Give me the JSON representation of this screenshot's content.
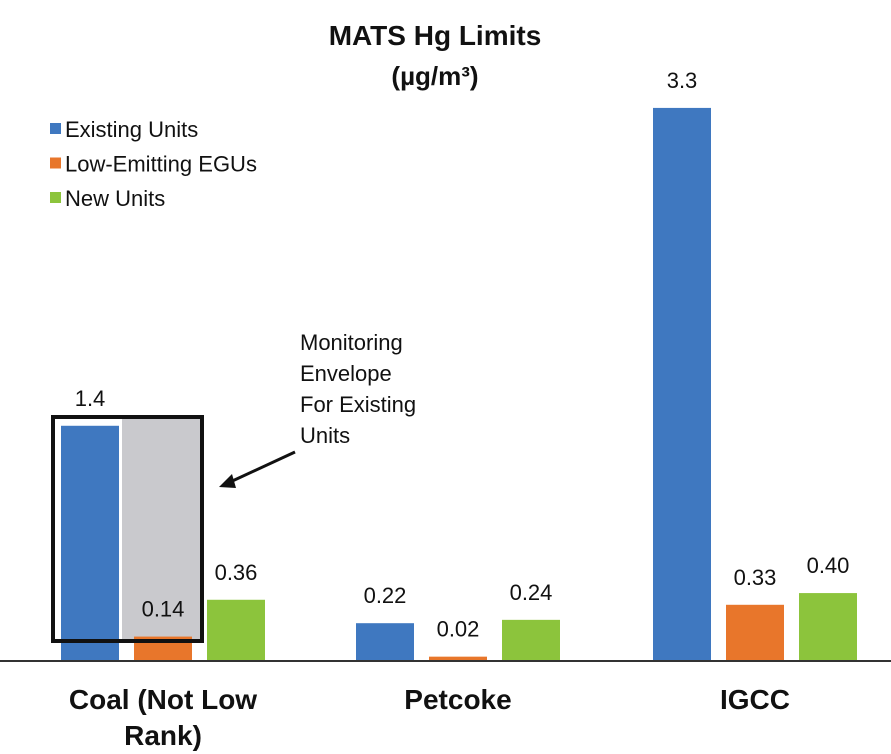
{
  "chart_data": {
    "type": "bar",
    "title": [
      "MATS Hg Limits",
      "(µg/m³)"
    ],
    "categories": [
      "Coal (Not Low Rank)",
      "Petcoke",
      "IGCC"
    ],
    "series": [
      {
        "name": "Existing Units",
        "color": "#3f78c0",
        "values": [
          1.4,
          0.22,
          3.3
        ],
        "value_labels": [
          "1.4",
          "0.22",
          "3.3"
        ]
      },
      {
        "name": "Low-Emitting EGUs",
        "color": "#e8762b",
        "values": [
          0.14,
          0.02,
          0.33
        ],
        "value_labels": [
          "0.14",
          "0.02",
          "0.33"
        ]
      },
      {
        "name": "New Units",
        "color": "#8cc43c",
        "values": [
          0.36,
          0.24,
          0.4
        ],
        "value_labels": [
          "0.36",
          "0.24",
          "0.40"
        ]
      }
    ],
    "legend": "upper-left",
    "annotation": [
      "Monitoring",
      "Envelope",
      "For Existing",
      "Units"
    ]
  }
}
